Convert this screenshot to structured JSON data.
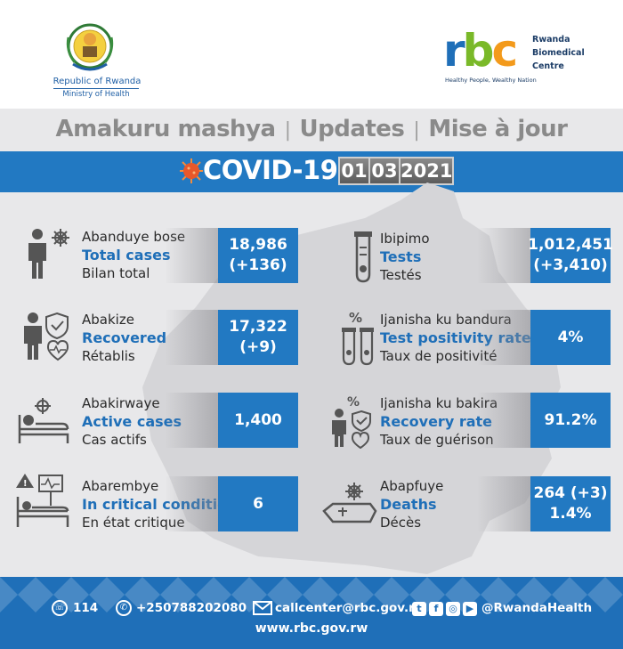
{
  "header": {
    "gov_line1": "Republic of Rwanda",
    "gov_line2": "Ministry of Health",
    "rbc_r": "r",
    "rbc_b": "b",
    "rbc_c": "c",
    "rbc_name_1": "Rwanda",
    "rbc_name_2": "Biomedical",
    "rbc_name_3": "Centre",
    "rbc_tagline": "Healthy People, Wealthy Nation"
  },
  "title": {
    "rw": "Amakuru mashya",
    "en": "Updates",
    "fr": "Mise à jour",
    "separator": "|"
  },
  "banner": {
    "label": "COVID-19",
    "day": "01",
    "month": "03",
    "year": "2021"
  },
  "stats": {
    "total_cases": {
      "rw": "Abanduye bose",
      "en": "Total cases",
      "fr": "Bilan total",
      "value": "18,986",
      "delta": "(+136)"
    },
    "recovered": {
      "rw": "Abakize",
      "en": "Recovered",
      "fr": "Rétablis",
      "value": "17,322",
      "delta": "(+9)"
    },
    "active": {
      "rw": "Abakirwaye",
      "en": "Active cases",
      "fr": "Cas actifs",
      "value": "1,400"
    },
    "critical": {
      "rw": "Abarembye",
      "en": "In critical condition",
      "fr": "En état critique",
      "value": "6"
    },
    "tests": {
      "rw": "Ibipimo",
      "en": "Tests",
      "fr": "Testés",
      "value": "1,012,451",
      "delta": "(+3,410)"
    },
    "positivity": {
      "rw": "Ijanisha ku bandura",
      "en": "Test positivity rate",
      "fr": "Taux de positivité",
      "value": "4%"
    },
    "recovery_rate": {
      "rw": "Ijanisha ku bakira",
      "en": "Recovery rate",
      "fr": "Taux de guérison",
      "value": "91.2%"
    },
    "deaths": {
      "rw": "Abapfuye",
      "en": "Deaths",
      "fr": "Décès",
      "value": "264 (+3)",
      "delta": "1.4%"
    }
  },
  "footer": {
    "hotline": "114",
    "phone": "+250788202080",
    "email": "callcenter@rbc.gov.rw",
    "social": "@RwandaHealth",
    "website": "www.rbc.gov.rw"
  },
  "colors": {
    "primary_blue": "#2279c2",
    "rbc_green": "#7ab929",
    "rbc_orange": "#f39a1b",
    "virus_orange": "#e8582a"
  },
  "icons": [
    "person-virus-icon",
    "person-shield-icon",
    "patient-bed-icon",
    "critical-bed-icon",
    "test-tube-icon",
    "test-tubes-percent-icon",
    "person-percent-icon",
    "coffin-icon",
    "phone-icon",
    "whatsapp-icon",
    "email-icon",
    "twitter-icon",
    "facebook-icon",
    "instagram-icon",
    "youtube-icon"
  ]
}
